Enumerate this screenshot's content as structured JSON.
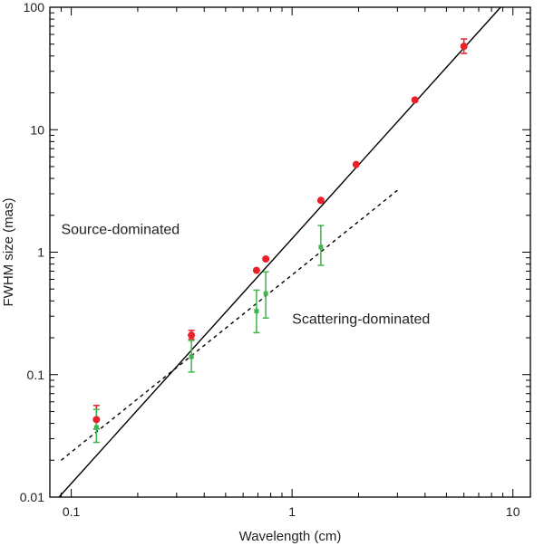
{
  "chart_data": {
    "type": "scatter",
    "xlabel": "Wavelength (cm)",
    "ylabel": "FWHM size (mas)",
    "x_scale": "log",
    "y_scale": "log",
    "xlim": [
      0.08,
      12
    ],
    "ylim": [
      0.01,
      100
    ],
    "x_ticks": [
      0.1,
      1,
      10
    ],
    "x_tick_labels": [
      "0.1",
      "1",
      "10"
    ],
    "y_ticks": [
      0.01,
      0.1,
      1,
      10,
      100
    ],
    "y_tick_labels": [
      "0.01",
      "0.1",
      "1",
      "10",
      "100"
    ],
    "grid": false,
    "annotations": [
      {
        "text": "Source-dominated",
        "x": 0.09,
        "y": 1.4
      },
      {
        "text": "Scattering-dominated",
        "x": 1.0,
        "y": 0.26
      }
    ],
    "series": [
      {
        "marker": "circle",
        "color": "#e8202a",
        "points": [
          {
            "x": 0.13,
            "y": 0.043,
            "y_low": 0.036,
            "y_high": 0.056
          },
          {
            "x": 0.35,
            "y": 0.21,
            "y_low": 0.195,
            "y_high": 0.23
          },
          {
            "x": 0.69,
            "y": 0.71
          },
          {
            "x": 0.76,
            "y": 0.88
          },
          {
            "x": 1.35,
            "y": 2.65
          },
          {
            "x": 1.95,
            "y": 5.2
          },
          {
            "x": 3.6,
            "y": 17.5
          },
          {
            "x": 6.0,
            "y": 48,
            "y_low": 42,
            "y_high": 55
          }
        ]
      },
      {
        "marker": "square",
        "color": "#3db54a",
        "points": [
          {
            "x": 0.13,
            "y": 0.037,
            "y_low": 0.028,
            "y_high": 0.052
          },
          {
            "x": 0.35,
            "y": 0.14,
            "y_low": 0.105,
            "y_high": 0.19
          },
          {
            "x": 0.69,
            "y": 0.33,
            "y_low": 0.22,
            "y_high": 0.49
          },
          {
            "x": 0.76,
            "y": 0.46,
            "y_low": 0.29,
            "y_high": 0.69
          },
          {
            "x": 1.35,
            "y": 1.1,
            "y_low": 0.78,
            "y_high": 1.65
          }
        ]
      }
    ],
    "fit_lines": [
      {
        "style": "solid",
        "color": "#000000",
        "points": [
          [
            0.088,
            0.01
          ],
          [
            8.8,
            100
          ]
        ]
      },
      {
        "style": "dashed",
        "color": "#000000",
        "points": [
          [
            0.09,
            0.02
          ],
          [
            3.0,
            3.2
          ]
        ]
      }
    ]
  }
}
